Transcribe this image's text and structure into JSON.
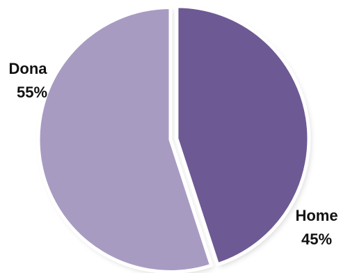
{
  "chart_data": {
    "type": "pie",
    "title": "",
    "slices": [
      {
        "label": "Home",
        "value": 45,
        "value_label": "45%",
        "color": "#6d5993"
      },
      {
        "label": "Dona",
        "value": 55,
        "value_label": "55%",
        "color": "#a89bc2"
      }
    ],
    "start_angle_deg": 0,
    "direction": "clockwise",
    "exploded": true,
    "legend": "none"
  }
}
